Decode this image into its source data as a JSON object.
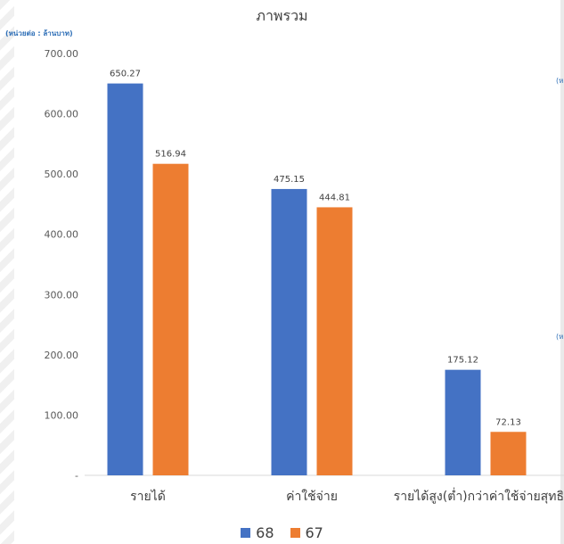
{
  "side_marks": [
    "(ห",
    "(ห"
  ],
  "chart_data": {
    "type": "bar",
    "title": "ภาพรวม",
    "unit_label": "(หน่วยต่อ : ล้านบาท)",
    "categories": [
      "รายได้",
      "ค่าใช้จ่าย",
      "รายได้สูง(ต่ำ)กว่าค่าใช้จ่ายสุทธิ"
    ],
    "series": [
      {
        "name": "68",
        "values": [
          650.27,
          475.15,
          175.12
        ],
        "labels": [
          "650.27",
          "475.15",
          "175.12"
        ],
        "color": "#4472c4"
      },
      {
        "name": "67",
        "values": [
          516.94,
          444.81,
          72.13
        ],
        "labels": [
          "516.94",
          "444.81",
          "72.13"
        ],
        "color": "#ed7d31"
      }
    ],
    "y_ticks": [
      "-",
      "100.00",
      "200.00",
      "300.00",
      "400.00",
      "500.00",
      "600.00",
      "700.00"
    ],
    "ylim": [
      0,
      700
    ],
    "grid": false,
    "legend_position": "bottom"
  }
}
